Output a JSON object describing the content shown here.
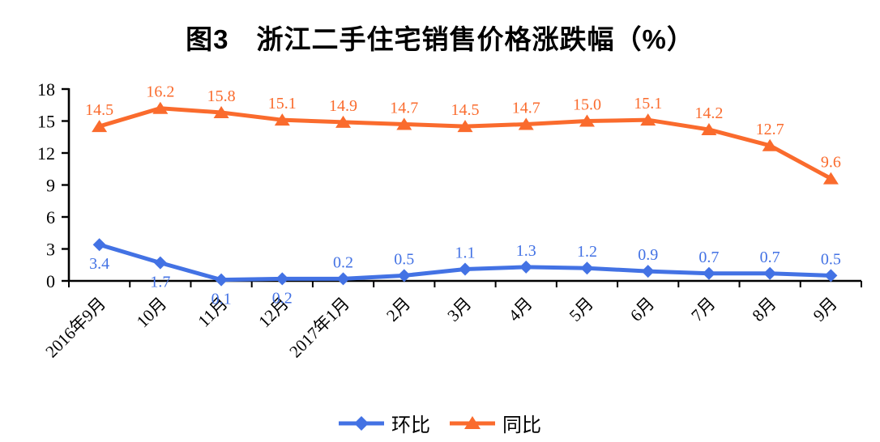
{
  "chart_data": {
    "type": "line",
    "title": "图3　浙江二手住宅销售价格涨跌幅（%）",
    "categories": [
      "2016年9月",
      "10月",
      "11月",
      "12月",
      "2017年1月",
      "2月",
      "3月",
      "4月",
      "5月",
      "6月",
      "7月",
      "8月",
      "9月"
    ],
    "series": [
      {
        "name": "环比",
        "marker": "diamond",
        "color": "#4372e4",
        "values": [
          3.4,
          1.7,
          0.1,
          0.2,
          0.2,
          0.5,
          1.1,
          1.3,
          1.2,
          0.9,
          0.7,
          0.7,
          0.5
        ],
        "labels_below_indices": [
          0,
          1,
          2,
          3
        ]
      },
      {
        "name": "同比",
        "marker": "triangle",
        "color": "#fa6b2d",
        "values": [
          14.5,
          16.2,
          15.8,
          15.1,
          14.9,
          14.7,
          14.5,
          14.7,
          15.0,
          15.1,
          14.2,
          12.7,
          9.6
        ],
        "labels_below_indices": []
      }
    ],
    "ylim": [
      0,
      18
    ],
    "yticks": [
      0,
      3,
      6,
      9,
      12,
      15,
      18
    ],
    "xlabel": "",
    "ylabel": "",
    "grid": false,
    "legend_position": "bottom",
    "axis_color": "#000000",
    "label_decimals": 1
  }
}
